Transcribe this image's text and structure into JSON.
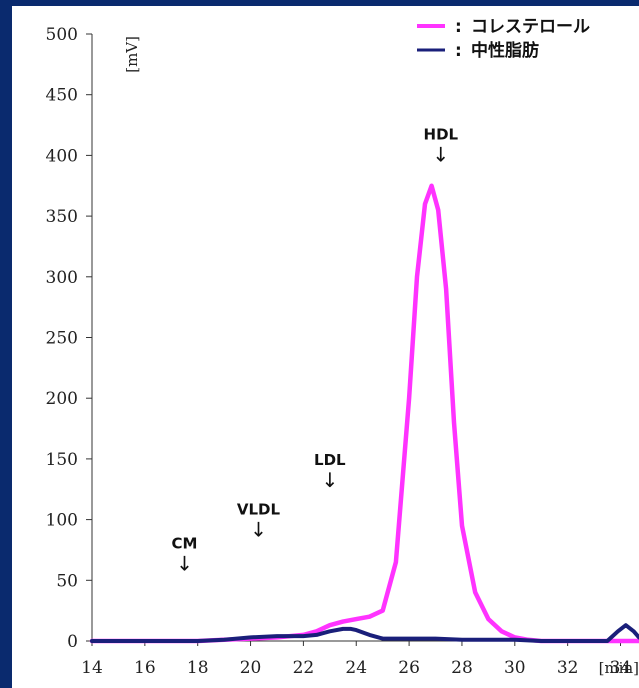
{
  "chart_data": {
    "type": "line",
    "title": "",
    "xlabel": "",
    "ylabel": "",
    "x_unit": "[min]",
    "y_unit": "[mV]",
    "xlim": [
      14,
      34.7
    ],
    "ylim": [
      0,
      500
    ],
    "x_ticks": [
      "14",
      "16",
      "18",
      "20",
      "22",
      "24",
      "26",
      "28",
      "30",
      "32",
      "34"
    ],
    "y_ticks": [
      "500",
      "450",
      "400",
      "350",
      "300",
      "250",
      "200",
      "150",
      "100",
      "50",
      "0"
    ],
    "grid": false,
    "legend_position": "top-right",
    "series": [
      {
        "name": "コレステロール",
        "color": "#ff33ff",
        "x": [
          14,
          18,
          19,
          20,
          21,
          22,
          22.5,
          23,
          23.5,
          24,
          24.5,
          25,
          25.5,
          26,
          26.3,
          26.6,
          26.85,
          27.1,
          27.4,
          27.7,
          28,
          28.5,
          29,
          29.5,
          30,
          30.5,
          31,
          32,
          33,
          34,
          34.7
        ],
        "values": [
          0,
          0,
          1,
          2,
          3,
          5,
          8,
          13,
          16,
          18,
          20,
          25,
          65,
          200,
          300,
          360,
          375,
          355,
          290,
          180,
          95,
          40,
          18,
          8,
          3,
          1,
          0,
          0,
          0,
          0,
          0
        ]
      },
      {
        "name": "中性脂肪",
        "color": "#1a1f7a",
        "x": [
          14,
          18,
          19,
          20,
          21,
          22,
          22.5,
          23,
          23.5,
          23.8,
          24,
          24.5,
          25,
          26,
          27,
          28,
          29,
          30,
          31,
          32,
          33,
          33.5,
          33.9,
          34.2,
          34.5,
          34.7
        ],
        "values": [
          0,
          0,
          1,
          3,
          4,
          4,
          5,
          8,
          10,
          10,
          9,
          5,
          2,
          2,
          2,
          1,
          1,
          1,
          0,
          0,
          0,
          0,
          8,
          13,
          8,
          3
        ]
      }
    ],
    "annotations": [
      {
        "label": "CM",
        "x": 17.5,
        "y": 58
      },
      {
        "label": "VLDL",
        "x": 20.3,
        "y": 86
      },
      {
        "label": "LDL",
        "x": 23,
        "y": 127
      },
      {
        "label": "HDL",
        "x": 27.2,
        "y": 395
      }
    ],
    "arrow_glyph": "↓",
    "legend_separator": ":"
  }
}
